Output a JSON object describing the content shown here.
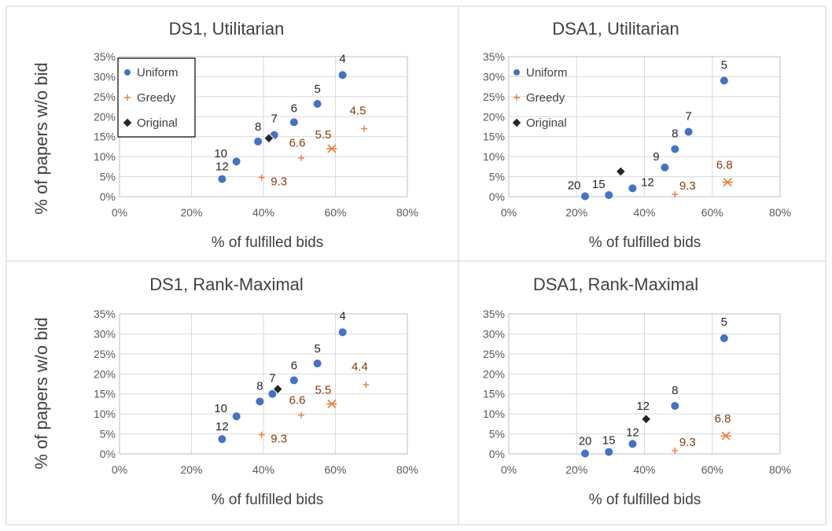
{
  "y_axis_label": "% of papers w/o bid",
  "colors": {
    "uniform": "#4472C4",
    "greedy": "#ED7D31",
    "original": "#262626",
    "greedy_label": "#843C0C"
  },
  "chart_data": [
    {
      "type": "scatter",
      "title": "DS1, Utilitarian",
      "xlabel": "% of fulfilled bids",
      "ylabel": "% of papers w/o bid",
      "xlim": [
        0,
        80
      ],
      "ylim": [
        0,
        35
      ],
      "x_ticks": [
        "0%",
        "20%",
        "40%",
        "60%",
        "80%"
      ],
      "y_ticks": [
        "0%",
        "5%",
        "10%",
        "15%",
        "20%",
        "25%",
        "30%",
        "35%"
      ],
      "grid": true,
      "legend": {
        "position": "top-left",
        "entries": [
          "Uniform",
          "Greedy",
          "Original"
        ]
      },
      "series": [
        {
          "name": "Uniform",
          "marker": "circle",
          "points": [
            {
              "x": 28.5,
              "y": 4.4,
              "label": "12"
            },
            {
              "x": 32.5,
              "y": 8.8,
              "label": "10"
            },
            {
              "x": 38.5,
              "y": 13.8,
              "label": "8"
            },
            {
              "x": 43.0,
              "y": 15.4,
              "label": "7"
            },
            {
              "x": 48.5,
              "y": 18.6,
              "label": "6"
            },
            {
              "x": 55.0,
              "y": 23.2,
              "label": "5"
            },
            {
              "x": 62.0,
              "y": 30.4,
              "label": "4"
            }
          ]
        },
        {
          "name": "Greedy",
          "marker": "plus",
          "points": [
            {
              "x": 39.5,
              "y": 4.8,
              "label": "9.3"
            },
            {
              "x": 50.5,
              "y": 9.7,
              "label": "6.6"
            },
            {
              "x": 59.0,
              "y": 12.0,
              "label": "5.5",
              "marker": "star"
            },
            {
              "x": 68.0,
              "y": 17.0,
              "label": "4.5"
            }
          ]
        },
        {
          "name": "Original",
          "marker": "diamond",
          "points": [
            {
              "x": 41.5,
              "y": 14.6,
              "label": ""
            }
          ]
        }
      ]
    },
    {
      "type": "scatter",
      "title": "DSA1, Utilitarian",
      "xlabel": "% of fulfilled bids",
      "ylabel": "",
      "xlim": [
        0,
        80
      ],
      "ylim": [
        0,
        35
      ],
      "x_ticks": [
        "0%",
        "20%",
        "40%",
        "60%",
        "80%"
      ],
      "y_ticks": [
        "0%",
        "5%",
        "10%",
        "15%",
        "20%",
        "25%",
        "30%",
        "35%"
      ],
      "grid": true,
      "legend": {
        "position": "top-left",
        "entries": [
          "Uniform",
          "Greedy",
          "Original"
        ]
      },
      "series": [
        {
          "name": "Uniform",
          "marker": "circle",
          "points": [
            {
              "x": 22.5,
              "y": 0.1,
              "label": "20"
            },
            {
              "x": 29.5,
              "y": 0.4,
              "label": "15"
            },
            {
              "x": 36.5,
              "y": 2.1,
              "label": "12"
            },
            {
              "x": 46.0,
              "y": 7.3,
              "label": "9"
            },
            {
              "x": 49.0,
              "y": 11.9,
              "label": "8"
            },
            {
              "x": 53.0,
              "y": 16.2,
              "label": "7"
            },
            {
              "x": 63.5,
              "y": 29.0,
              "label": "5"
            }
          ]
        },
        {
          "name": "Greedy",
          "marker": "plus",
          "points": [
            {
              "x": 49.0,
              "y": 0.6,
              "label": "9.3"
            },
            {
              "x": 64.5,
              "y": 3.6,
              "label": "6.8",
              "marker": "star"
            }
          ]
        },
        {
          "name": "Original",
          "marker": "diamond",
          "points": [
            {
              "x": 33.0,
              "y": 6.3,
              "label": ""
            }
          ]
        }
      ]
    },
    {
      "type": "scatter",
      "title": "DS1, Rank-Maximal",
      "xlabel": "% of fulfilled bids",
      "ylabel": "% of papers w/o bid",
      "xlim": [
        0,
        80
      ],
      "ylim": [
        0,
        35
      ],
      "x_ticks": [
        "0%",
        "20%",
        "40%",
        "60%",
        "80%"
      ],
      "y_ticks": [
        "0%",
        "5%",
        "10%",
        "15%",
        "20%",
        "25%",
        "30%",
        "35%"
      ],
      "grid": true,
      "legend": null,
      "series": [
        {
          "name": "Uniform",
          "marker": "circle",
          "points": [
            {
              "x": 28.5,
              "y": 3.7,
              "label": "12"
            },
            {
              "x": 32.5,
              "y": 9.4,
              "label": "10"
            },
            {
              "x": 39.0,
              "y": 13.1,
              "label": "8"
            },
            {
              "x": 42.5,
              "y": 15.0,
              "label": "7"
            },
            {
              "x": 48.5,
              "y": 18.4,
              "label": "6"
            },
            {
              "x": 55.0,
              "y": 22.6,
              "label": "5"
            },
            {
              "x": 62.0,
              "y": 30.4,
              "label": "4"
            }
          ]
        },
        {
          "name": "Greedy",
          "marker": "plus",
          "points": [
            {
              "x": 39.5,
              "y": 4.8,
              "label": "9.3"
            },
            {
              "x": 50.5,
              "y": 9.7,
              "label": "6.6"
            },
            {
              "x": 59.0,
              "y": 12.5,
              "label": "5.5",
              "marker": "star"
            },
            {
              "x": 68.5,
              "y": 17.3,
              "label": "4.4"
            }
          ]
        },
        {
          "name": "Original",
          "marker": "diamond",
          "points": [
            {
              "x": 44.0,
              "y": 16.2,
              "label": ""
            }
          ]
        }
      ]
    },
    {
      "type": "scatter",
      "title": "DSA1, Rank-Maximal",
      "xlabel": "% of fulfilled bids",
      "ylabel": "",
      "xlim": [
        0,
        80
      ],
      "ylim": [
        0,
        35
      ],
      "x_ticks": [
        "0%",
        "20%",
        "40%",
        "60%",
        "80%"
      ],
      "y_ticks": [
        "0%",
        "5%",
        "10%",
        "15%",
        "20%",
        "25%",
        "30%",
        "35%"
      ],
      "grid": true,
      "legend": null,
      "series": [
        {
          "name": "Uniform",
          "marker": "circle",
          "points": [
            {
              "x": 22.5,
              "y": 0.1,
              "label": "20"
            },
            {
              "x": 29.5,
              "y": 0.5,
              "label": "15"
            },
            {
              "x": 36.5,
              "y": 2.5,
              "label": "12"
            },
            {
              "x": 49.0,
              "y": 12.0,
              "label": "8"
            },
            {
              "x": 63.5,
              "y": 28.9,
              "label": "5"
            }
          ]
        },
        {
          "name": "Greedy",
          "marker": "plus",
          "points": [
            {
              "x": 49.0,
              "y": 0.8,
              "label": "9.3"
            },
            {
              "x": 64.0,
              "y": 4.5,
              "label": "6.8",
              "marker": "star"
            }
          ]
        },
        {
          "name": "Original",
          "marker": "diamond",
          "points": [
            {
              "x": 40.5,
              "y": 8.7,
              "label": "12"
            }
          ]
        }
      ]
    }
  ]
}
